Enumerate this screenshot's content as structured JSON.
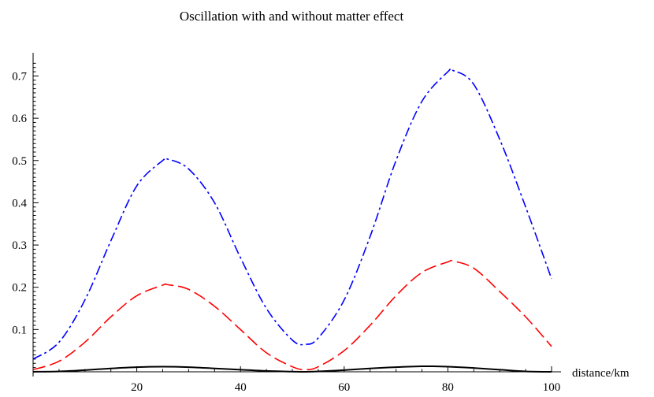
{
  "chart_data": {
    "type": "line",
    "title": "Oscillation with and without matter effect",
    "xlabel": "distance/km",
    "ylabel": "",
    "xlim": [
      0,
      100
    ],
    "ylim": [
      0,
      0.74
    ],
    "x_ticks": [
      20,
      40,
      60,
      80,
      100
    ],
    "x_tick_labels": [
      "20",
      "40",
      "60",
      "80",
      "100"
    ],
    "y_ticks": [
      0.1,
      0.2,
      0.3,
      0.4,
      0.5,
      0.6,
      0.7
    ],
    "y_tick_labels": [
      "0.1",
      "0.2",
      "0.3",
      "0.4",
      "0.5",
      "0.6",
      "0.7"
    ],
    "grid": false,
    "legend": "none",
    "series": [
      {
        "color": "#0000ff",
        "dash": "dash-dot",
        "x": [
          0,
          5,
          10,
          15,
          20,
          25,
          26,
          30,
          35,
          40,
          45,
          50,
          52.5,
          55,
          60,
          65,
          70,
          75,
          80,
          81,
          85,
          90,
          95,
          100
        ],
        "y": [
          0.03,
          0.07,
          0.17,
          0.31,
          0.44,
          0.5,
          0.503,
          0.48,
          0.4,
          0.27,
          0.15,
          0.075,
          0.065,
          0.08,
          0.17,
          0.32,
          0.5,
          0.64,
          0.71,
          0.713,
          0.68,
          0.55,
          0.39,
          0.22
        ]
      },
      {
        "color": "#ff0000",
        "dash": "long-dash",
        "x": [
          0,
          5,
          10,
          15,
          20,
          25,
          26,
          30,
          35,
          40,
          45,
          50,
          52.5,
          55,
          60,
          65,
          70,
          75,
          80,
          81,
          85,
          90,
          95,
          100
        ],
        "y": [
          0.005,
          0.025,
          0.07,
          0.13,
          0.18,
          0.205,
          0.206,
          0.195,
          0.155,
          0.1,
          0.045,
          0.012,
          0.005,
          0.012,
          0.05,
          0.11,
          0.18,
          0.235,
          0.26,
          0.262,
          0.245,
          0.19,
          0.13,
          0.06
        ]
      },
      {
        "color": "#000000",
        "dash": "solid",
        "x": [
          0,
          5,
          10,
          15,
          20,
          25,
          30,
          35,
          40,
          45,
          50,
          52,
          55,
          60,
          65,
          70,
          75,
          77,
          80,
          85,
          90,
          95,
          100
        ],
        "y": [
          0,
          0.001,
          0.004,
          0.008,
          0.011,
          0.012,
          0.011,
          0.008,
          0.005,
          0.002,
          0.0005,
          0,
          0.001,
          0.004,
          0.008,
          0.011,
          0.013,
          0.013,
          0.012,
          0.009,
          0.005,
          0.001,
          0
        ]
      }
    ]
  }
}
